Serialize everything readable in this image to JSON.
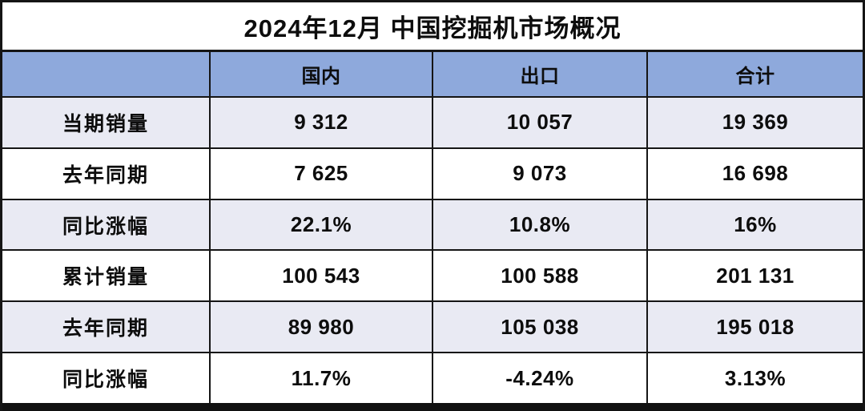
{
  "chart_data": {
    "type": "table",
    "title": "2024年12月 中国挖掘机市场概况",
    "columns": [
      "",
      "国内",
      "出口",
      "合计"
    ],
    "rows": [
      [
        "当期销量",
        "9 312",
        "10 057",
        "19 369"
      ],
      [
        "去年同期",
        "7 625",
        "9 073",
        "16 698"
      ],
      [
        "同比涨幅",
        "22.1%",
        "10.8%",
        "16%"
      ],
      [
        "累计销量",
        "100 543",
        "100 588",
        "201 131"
      ],
      [
        "去年同期",
        "89 980",
        "105 038",
        "195 018"
      ],
      [
        "同比涨幅",
        "11.7%",
        "-4.24%",
        "3.13%"
      ]
    ],
    "layout": {
      "header_position": "top",
      "zebra_striping": true,
      "grid": true
    }
  },
  "colors": {
    "header_bg": "#8EA9DC",
    "row_alt_bg": "#E9EAF3",
    "row_bg": "#FFFFFF",
    "border": "#151515",
    "text": "#0D0D0D"
  }
}
